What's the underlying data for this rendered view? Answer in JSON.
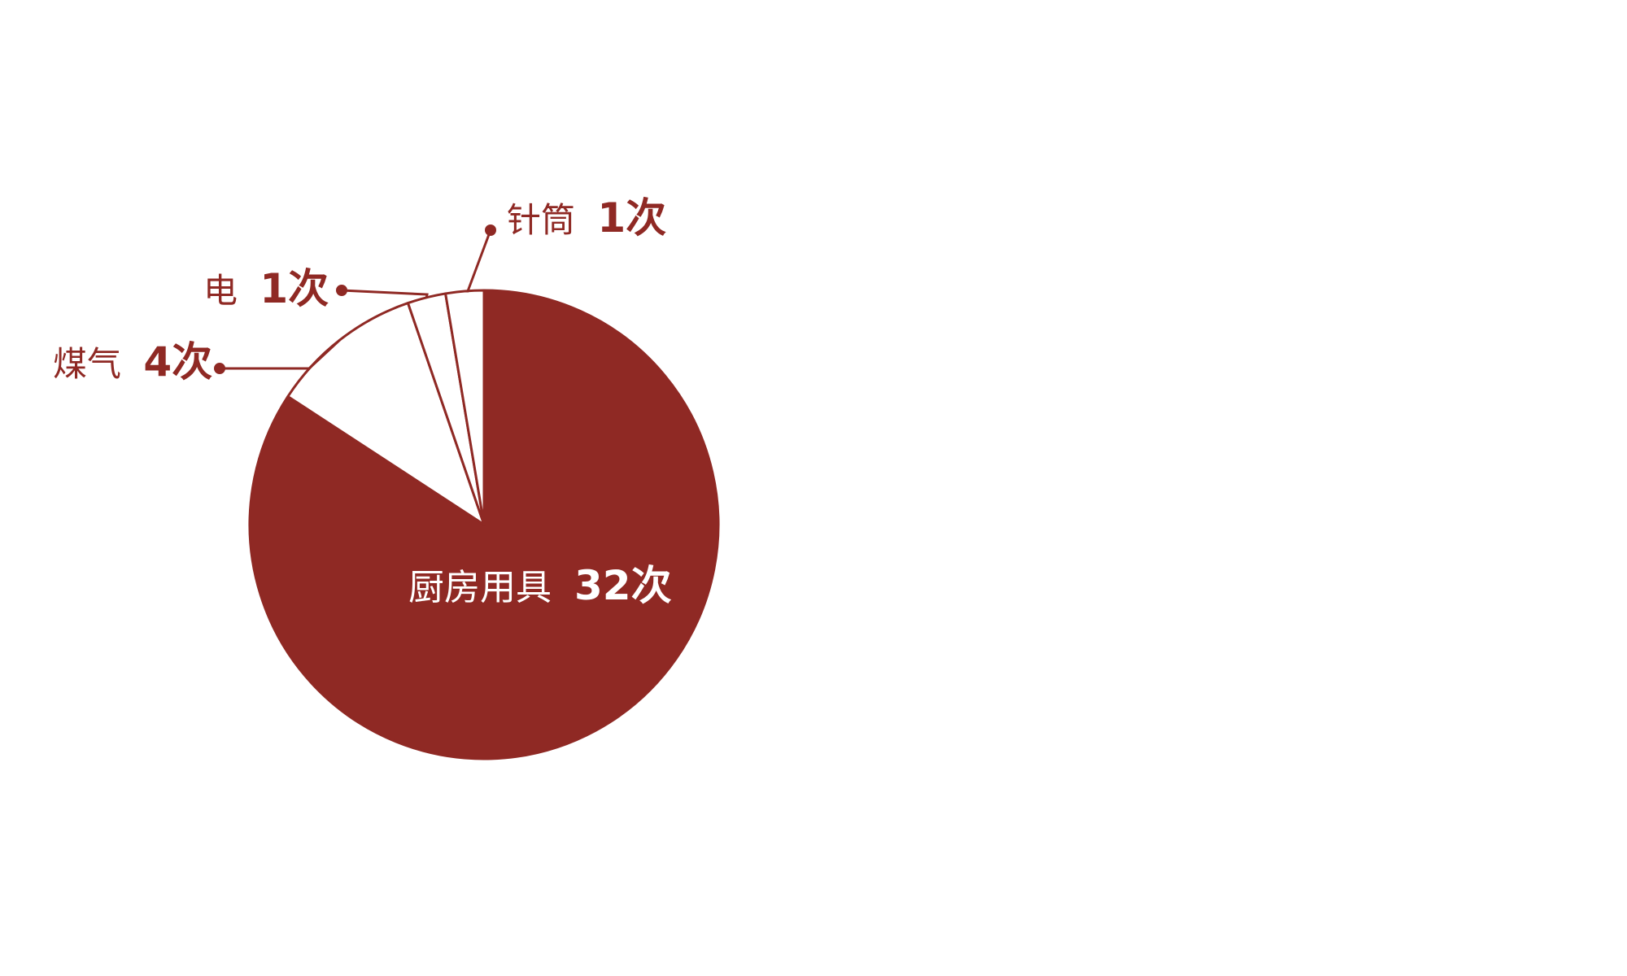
{
  "colors": {
    "accent": "#8f2924",
    "white": "#ffffff"
  },
  "chart_data": {
    "type": "pie",
    "start_angle": "12 o'clock",
    "direction": "clockwise",
    "legend": "none",
    "slices": [
      {
        "name": "厨房用具",
        "value": 32,
        "value_label": "32次",
        "fill": "accent"
      },
      {
        "name": "煤气",
        "value": 4,
        "value_label": "4次",
        "fill": "white"
      },
      {
        "name": "电",
        "value": 1,
        "value_label": "1次",
        "fill": "white"
      },
      {
        "name": "针筒",
        "value": 1,
        "value_label": "1次",
        "fill": "white"
      }
    ]
  }
}
